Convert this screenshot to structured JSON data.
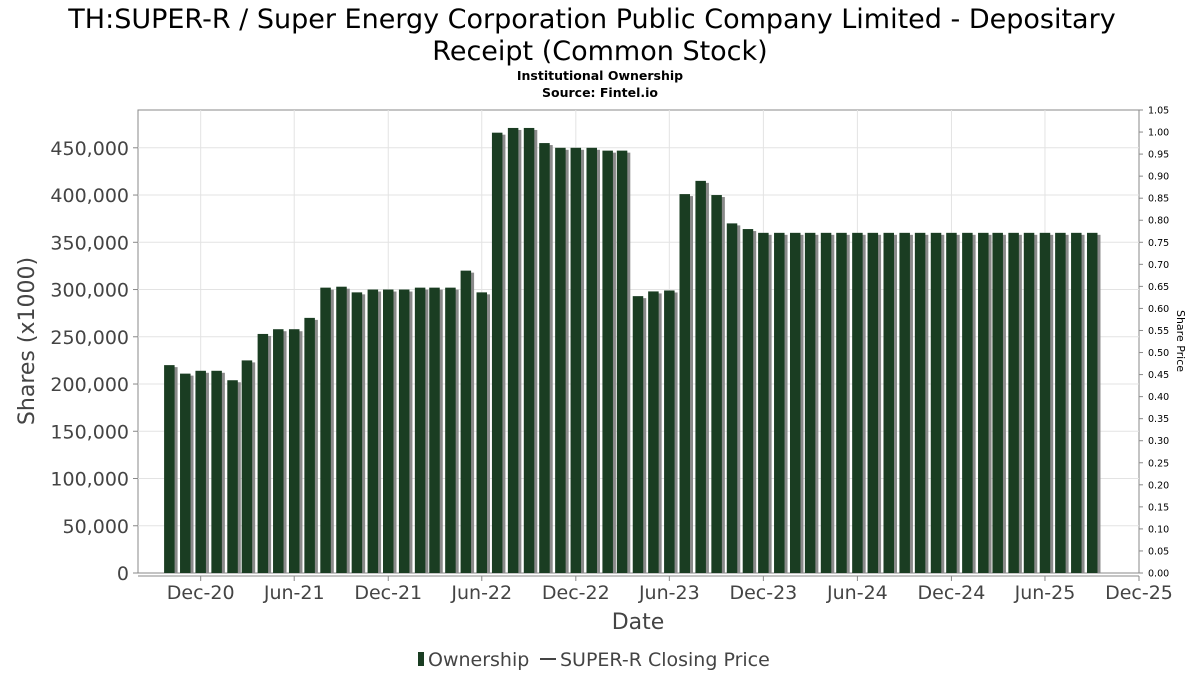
{
  "chart_data": {
    "type": "bar",
    "title_lines": [
      "TH:SUPER-R / Super Energy Corporation Public Company Limited - Depositary",
      "Receipt (Common Stock)"
    ],
    "subtitle_lines": [
      "Institutional Ownership",
      "Source: Fintel.io"
    ],
    "xlabel": "Date",
    "ylabel": "Shares (x1000)",
    "y2label": "Share Price",
    "x_range": [
      "2020-08-01",
      "2025-12-01"
    ],
    "ylim": [
      0,
      490000
    ],
    "y_ticks": [
      {
        "value": 0,
        "label": "0"
      },
      {
        "value": 50000,
        "label": "50,000"
      },
      {
        "value": 100000,
        "label": "100,000"
      },
      {
        "value": 150000,
        "label": "150,000"
      },
      {
        "value": 200000,
        "label": "200,000"
      },
      {
        "value": 250000,
        "label": "250,000"
      },
      {
        "value": 300000,
        "label": "300,000"
      },
      {
        "value": 350000,
        "label": "350,000"
      },
      {
        "value": 400000,
        "label": "400,000"
      },
      {
        "value": 450000,
        "label": "450,000"
      }
    ],
    "y2lim": [
      0,
      1.05
    ],
    "y2_ticks": [
      "0.00",
      "0.05",
      "0.10",
      "0.15",
      "0.20",
      "0.25",
      "0.30",
      "0.35",
      "0.40",
      "0.45",
      "0.50",
      "0.55",
      "0.60",
      "0.65",
      "0.70",
      "0.75",
      "0.80",
      "0.85",
      "0.90",
      "0.95",
      "1.00",
      "1.05"
    ],
    "x_ticks": [
      {
        "date": "2020-12-01",
        "label": "Dec-20"
      },
      {
        "date": "2021-06-01",
        "label": "Jun-21"
      },
      {
        "date": "2021-12-01",
        "label": "Dec-21"
      },
      {
        "date": "2022-06-01",
        "label": "Jun-22"
      },
      {
        "date": "2022-12-01",
        "label": "Dec-22"
      },
      {
        "date": "2023-06-01",
        "label": "Jun-23"
      },
      {
        "date": "2023-12-01",
        "label": "Dec-23"
      },
      {
        "date": "2024-06-01",
        "label": "Jun-24"
      },
      {
        "date": "2024-12-01",
        "label": "Dec-24"
      },
      {
        "date": "2025-06-01",
        "label": "Jun-25"
      },
      {
        "date": "2025-12-01",
        "label": "Dec-25"
      }
    ],
    "grid": true,
    "legend": {
      "placement": "bottom",
      "items": [
        {
          "label": "Ownership",
          "kind": "bar",
          "color": "#1a3d22"
        },
        {
          "label": "SUPER-R Closing Price",
          "kind": "line",
          "color": "#444444"
        }
      ]
    },
    "series": [
      {
        "name": "Ownership",
        "color": "#1a3d22",
        "shadow_color": "#8a8a8a",
        "x": [
          "2020-10-01",
          "2020-11-01",
          "2020-12-01",
          "2021-01-01",
          "2021-02-01",
          "2021-03-01",
          "2021-04-01",
          "2021-05-01",
          "2021-06-01",
          "2021-07-01",
          "2021-08-01",
          "2021-09-01",
          "2021-10-01",
          "2021-11-01",
          "2021-12-01",
          "2022-01-01",
          "2022-02-01",
          "2022-03-01",
          "2022-04-01",
          "2022-05-01",
          "2022-06-01",
          "2022-07-01",
          "2022-08-01",
          "2022-09-01",
          "2022-10-01",
          "2022-11-01",
          "2022-12-01",
          "2023-01-01",
          "2023-02-01",
          "2023-03-01",
          "2023-04-01",
          "2023-05-01",
          "2023-06-01",
          "2023-07-01",
          "2023-08-01",
          "2023-09-01",
          "2023-10-01",
          "2023-11-01",
          "2023-12-01",
          "2024-01-01",
          "2024-02-01",
          "2024-03-01",
          "2024-04-01",
          "2024-05-01",
          "2024-06-01",
          "2024-07-01",
          "2024-08-01",
          "2024-09-01",
          "2024-10-01",
          "2024-11-01",
          "2024-12-01",
          "2025-01-01",
          "2025-02-01",
          "2025-03-01",
          "2025-04-01",
          "2025-05-01",
          "2025-06-01",
          "2025-07-01",
          "2025-08-01",
          "2025-09-01"
        ],
        "values": [
          220000,
          211000,
          214000,
          214000,
          204000,
          225000,
          253000,
          258000,
          258000,
          270000,
          302000,
          303000,
          297000,
          300000,
          300000,
          300000,
          302000,
          302000,
          302000,
          320000,
          297000,
          466000,
          471000,
          471000,
          455000,
          450000,
          450000,
          450000,
          447000,
          447000,
          293000,
          298000,
          299000,
          401000,
          415000,
          400000,
          370000,
          364000,
          360000,
          360000,
          360000,
          360000,
          360000,
          360000,
          360000,
          360000,
          360000,
          360000,
          360000,
          360000,
          360000,
          360000,
          360000,
          360000,
          360000,
          360000,
          360000,
          360000,
          360000,
          360000
        ]
      }
    ]
  }
}
